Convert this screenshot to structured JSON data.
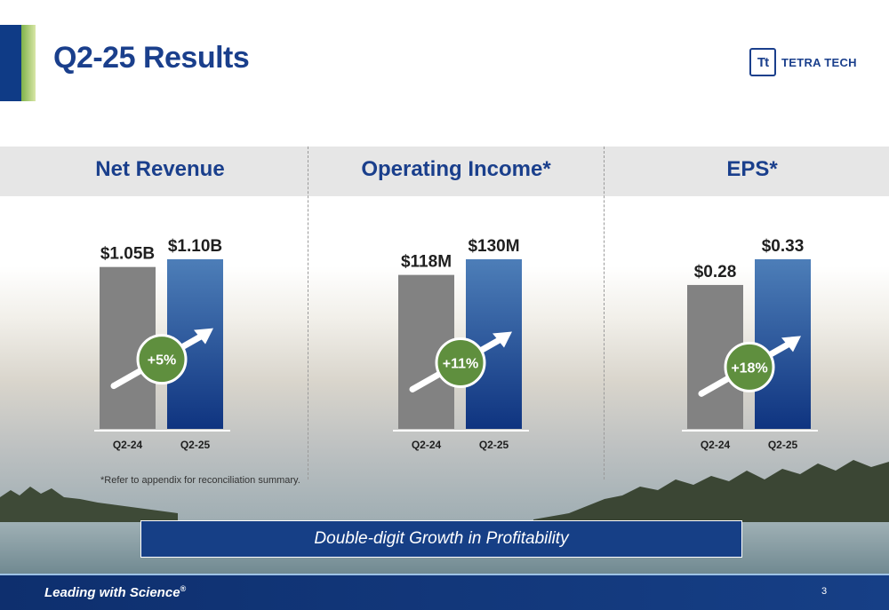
{
  "header": {
    "title": "Q2-25 Results",
    "logo_text": "TETRA TECH",
    "logo_mark": "Tt"
  },
  "colors": {
    "brand_blue": "#1a3f8c",
    "prior_bar": "#828282",
    "growth_badge": "#5f8f3e"
  },
  "chart_data": [
    {
      "type": "bar",
      "title": "Net Revenue",
      "categories": [
        "Q2-24",
        "Q2-25"
      ],
      "values": [
        1.05,
        1.1
      ],
      "labels": [
        "$1.05B",
        "$1.10B"
      ],
      "unit": "$B",
      "growth": "+5%"
    },
    {
      "type": "bar",
      "title": "Operating Income*",
      "categories": [
        "Q2-24",
        "Q2-25"
      ],
      "values": [
        118,
        130
      ],
      "labels": [
        "$118M",
        "$130M"
      ],
      "unit": "$M",
      "growth": "+11%"
    },
    {
      "type": "bar",
      "title": "EPS*",
      "categories": [
        "Q2-24",
        "Q2-25"
      ],
      "values": [
        0.28,
        0.33
      ],
      "labels": [
        "$0.28",
        "$0.33"
      ],
      "unit": "$",
      "growth": "+18%"
    }
  ],
  "footnote": "*Refer to appendix for reconciliation summary.",
  "callout": "Double-digit Growth in Profitability",
  "footer": {
    "tagline": "Leading with Science",
    "tagline_mark": "®",
    "page": "3"
  }
}
